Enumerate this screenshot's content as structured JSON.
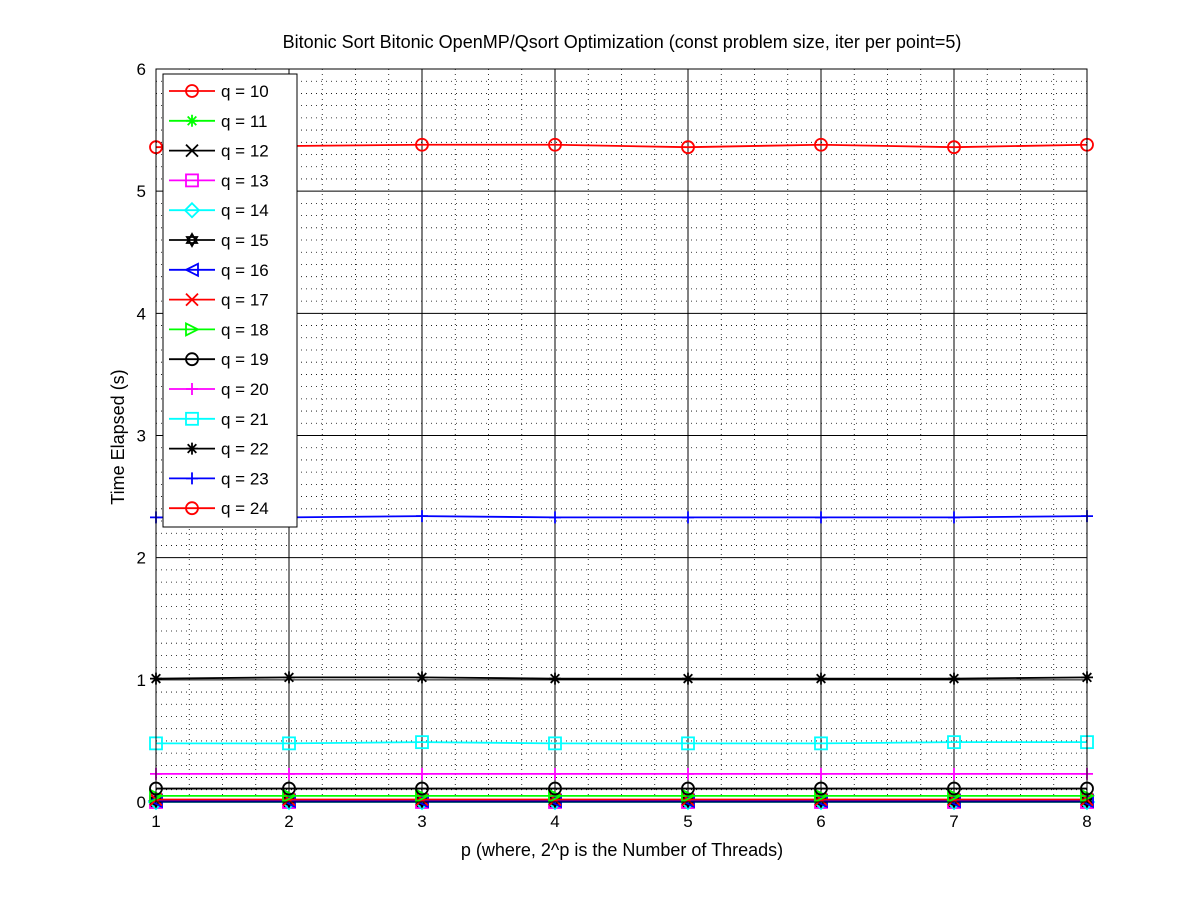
{
  "chart_data": {
    "type": "line",
    "title": "Bitonic Sort Bitonic OpenMP/Qsort Optimization (const problem size, iter per point=5)",
    "xlabel": "p (where, 2^p is the Number of Threads)",
    "ylabel": "Time Elapsed (s)",
    "xlim": [
      1,
      8
    ],
    "ylim": [
      0,
      6
    ],
    "x": [
      1,
      2,
      3,
      4,
      5,
      6,
      7,
      8
    ],
    "xticks": [
      "1",
      "2",
      "3",
      "4",
      "5",
      "6",
      "7",
      "8"
    ],
    "yticks": [
      "0",
      "1",
      "2",
      "3",
      "4",
      "5",
      "6"
    ],
    "grid": true,
    "minor_grid": true,
    "legend_position": "top-left",
    "series": [
      {
        "name": "q = 10",
        "color": "#ff0000",
        "marker": "circle",
        "values": [
          0.0,
          0.0,
          0.0,
          0.0,
          0.0,
          0.0,
          0.0,
          0.0
        ]
      },
      {
        "name": "q = 11",
        "color": "#00ff00",
        "marker": "asterisk",
        "values": [
          0.0,
          0.0,
          0.0,
          0.0,
          0.0,
          0.0,
          0.0,
          0.0
        ]
      },
      {
        "name": "q = 12",
        "color": "#000000",
        "marker": "x",
        "values": [
          0.0,
          0.0,
          0.0,
          0.0,
          0.0,
          0.0,
          0.0,
          0.0
        ]
      },
      {
        "name": "q = 13",
        "color": "#ff00ff",
        "marker": "square",
        "values": [
          0.0,
          0.0,
          0.0,
          0.0,
          0.0,
          0.0,
          0.0,
          0.0
        ]
      },
      {
        "name": "q = 14",
        "color": "#00ffff",
        "marker": "diamond",
        "values": [
          0.0,
          0.0,
          0.0,
          0.0,
          0.0,
          0.0,
          0.0,
          0.0
        ]
      },
      {
        "name": "q = 15",
        "color": "#000000",
        "marker": "hexagram",
        "values": [
          0.01,
          0.01,
          0.01,
          0.01,
          0.01,
          0.01,
          0.01,
          0.01
        ]
      },
      {
        "name": "q = 16",
        "color": "#0000ff",
        "marker": "triangle-left",
        "values": [
          0.01,
          0.01,
          0.01,
          0.01,
          0.01,
          0.01,
          0.01,
          0.01
        ]
      },
      {
        "name": "q = 17",
        "color": "#ff0000",
        "marker": "x",
        "values": [
          0.02,
          0.02,
          0.02,
          0.02,
          0.02,
          0.02,
          0.02,
          0.02
        ]
      },
      {
        "name": "q = 18",
        "color": "#00ff00",
        "marker": "triangle-right",
        "values": [
          0.05,
          0.05,
          0.05,
          0.05,
          0.05,
          0.05,
          0.05,
          0.05
        ]
      },
      {
        "name": "q = 19",
        "color": "#000000",
        "marker": "circle",
        "values": [
          0.11,
          0.11,
          0.11,
          0.11,
          0.11,
          0.11,
          0.11,
          0.11
        ]
      },
      {
        "name": "q = 20",
        "color": "#ff00ff",
        "marker": "plus",
        "values": [
          0.23,
          0.23,
          0.23,
          0.23,
          0.23,
          0.23,
          0.23,
          0.23
        ]
      },
      {
        "name": "q = 21",
        "color": "#00ffff",
        "marker": "square",
        "values": [
          0.48,
          0.48,
          0.49,
          0.48,
          0.48,
          0.48,
          0.49,
          0.49
        ]
      },
      {
        "name": "q = 22",
        "color": "#000000",
        "marker": "asterisk",
        "values": [
          1.01,
          1.02,
          1.02,
          1.01,
          1.01,
          1.01,
          1.01,
          1.02
        ]
      },
      {
        "name": "q = 23",
        "color": "#0000ff",
        "marker": "plus",
        "values": [
          2.33,
          2.33,
          2.34,
          2.33,
          2.33,
          2.33,
          2.33,
          2.34
        ]
      },
      {
        "name": "q = 24",
        "color": "#ff0000",
        "marker": "circle",
        "values": [
          5.36,
          5.37,
          5.38,
          5.38,
          5.36,
          5.38,
          5.36,
          5.38
        ]
      }
    ]
  }
}
